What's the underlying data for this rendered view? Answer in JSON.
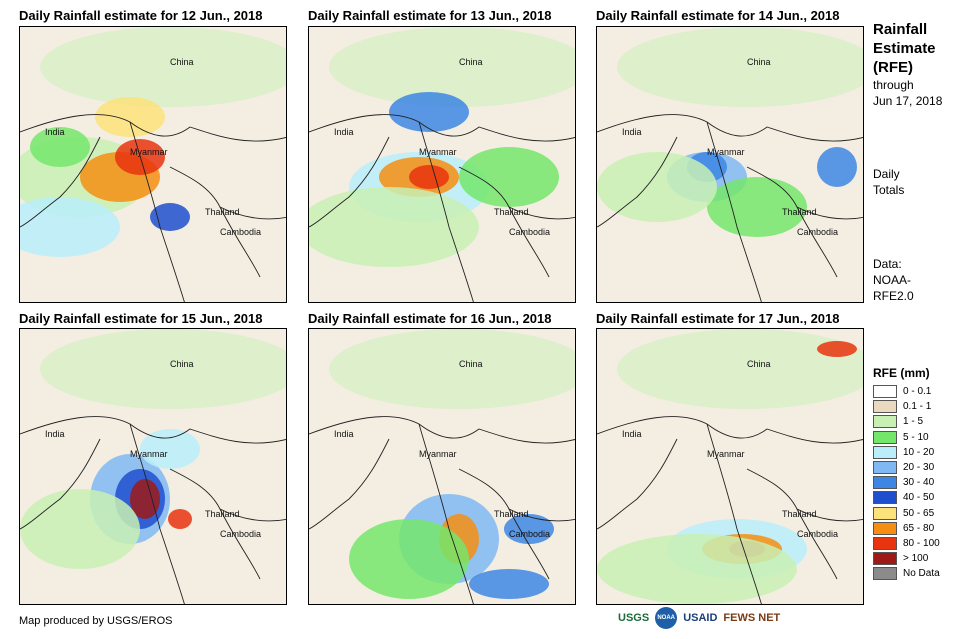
{
  "panels": [
    {
      "title": "Daily Rainfall estimate for 12 Jun., 2018",
      "labels": {
        "china": "China",
        "india": "India",
        "myanmar": "Myanmar",
        "thailand": "Thailand",
        "cambodia": "Cambodia"
      }
    },
    {
      "title": "Daily Rainfall estimate for 13 Jun., 2018",
      "labels": {
        "china": "China",
        "india": "India",
        "myanmar": "Myanmar",
        "thailand": "Thailand",
        "cambodia": "Cambodia"
      }
    },
    {
      "title": "Daily Rainfall estimate for 14 Jun., 2018",
      "labels": {
        "china": "China",
        "india": "India",
        "myanmar": "Myanmar",
        "thailand": "Thailand",
        "cambodia": "Cambodia"
      }
    },
    {
      "title": "Daily Rainfall estimate for 15 Jun., 2018",
      "labels": {
        "china": "China",
        "india": "India",
        "myanmar": "Myanmar",
        "thailand": "Thailand",
        "cambodia": "Cambodia"
      }
    },
    {
      "title": "Daily Rainfall estimate for 16 Jun., 2018",
      "labels": {
        "china": "China",
        "india": "India",
        "myanmar": "Myanmar",
        "thailand": "Thailand",
        "cambodia": "Cambodia"
      }
    },
    {
      "title": "Daily Rainfall estimate for 17 Jun., 2018",
      "labels": {
        "china": "China",
        "india": "India",
        "myanmar": "Myanmar",
        "thailand": "Thailand",
        "cambodia": "Cambodia"
      }
    }
  ],
  "sidebar": {
    "title_line1": "Rainfall",
    "title_line2": "Estimate",
    "title_line3": "(RFE)",
    "through": "through",
    "through_date": "Jun 17, 2018",
    "daily_line1": "Daily",
    "daily_line2": "Totals",
    "data_line1": "Data:",
    "data_line2": "NOAA-",
    "data_line3": "RFE2.0"
  },
  "legend": {
    "title": "RFE (mm)",
    "items": [
      {
        "label": "0 - 0.1",
        "color": "#ffffff"
      },
      {
        "label": "0.1 - 1",
        "color": "#ead9bf"
      },
      {
        "label": "1 - 5",
        "color": "#c8f0b4"
      },
      {
        "label": "5 - 10",
        "color": "#74e66b"
      },
      {
        "label": "10 - 20",
        "color": "#b9eefa"
      },
      {
        "label": "20 - 30",
        "color": "#7fb8f3"
      },
      {
        "label": "30 - 40",
        "color": "#3d86e4"
      },
      {
        "label": "40 - 50",
        "color": "#1f4fcf"
      },
      {
        "label": "50 - 65",
        "color": "#fbe27a"
      },
      {
        "label": "65 - 80",
        "color": "#f58e12"
      },
      {
        "label": "80 - 100",
        "color": "#e8340f"
      },
      {
        "label": "> 100",
        "color": "#9e1a17"
      },
      {
        "label": "No Data",
        "color": "#8b8b8b"
      }
    ]
  },
  "footer": {
    "credit": "Map produced by USGS/EROS",
    "logos": [
      "USGS",
      "NOAA",
      "USAID",
      "FEWS NET"
    ]
  }
}
